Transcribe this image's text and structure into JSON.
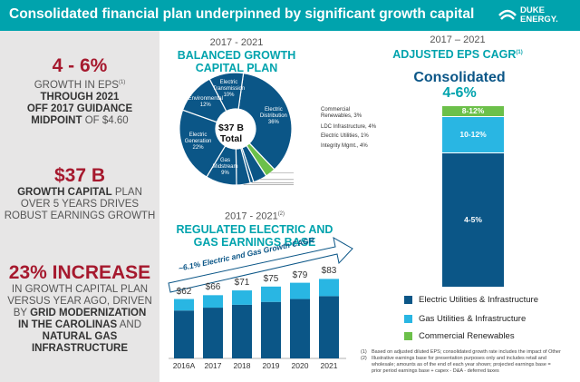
{
  "header": {
    "title": "Consolidated financial plan underpinned by significant growth capital",
    "logo_text_line1": "DUKE",
    "logo_text_line2": "ENERGY."
  },
  "left": {
    "s1_big": "4 - 6%",
    "s1_l1": "GROWTH IN EPS",
    "s1_sup": "(1)",
    "s1_l2": "THROUGH 2021",
    "s1_l3": "OFF 2017 GUIDANCE",
    "s1_l4a": "MIDPOINT",
    "s1_l4b": "OF $4.60",
    "s2_big": "$37 B",
    "s2_l1a": "GROWTH CAPITAL",
    "s2_l1b": "PLAN",
    "s2_l2": "OVER 5 YEARS DRIVES",
    "s2_l3": "ROBUST EARNINGS GROWTH",
    "s3_big": "23% INCREASE",
    "s3_l1": "IN GROWTH CAPITAL PLAN",
    "s3_l2": "VERSUS YEAR AGO, DRIVEN",
    "s3_l3a": "BY",
    "s3_l3b": "GRID MODERNIZATION",
    "s3_l4a": "IN THE CAROLINAS",
    "s3_l4b": "AND",
    "s3_l5": "NATURAL GAS",
    "s3_l6": "INFRASTRUCTURE"
  },
  "pie": {
    "title_l1": "2017 - 2021",
    "title_l2": "BALANCED GROWTH",
    "title_l3": "CAPITAL PLAN",
    "center_l1": "$37 B",
    "center_l2": "Total"
  },
  "bars": {
    "title_l1": "2017 - 2021",
    "title_sup": "(2)",
    "title_l2": "REGULATED ELECTRIC AND",
    "title_l3": "GAS EARNINGS BASE",
    "arrow_text": "~6.1% Electric and Gas Growth CAGR"
  },
  "eps": {
    "title_l1": "2017 – 2021",
    "title_l2": "ADJUSTED EPS CAGR",
    "title_sup": "(1)",
    "big_l1": "Consolidated",
    "big_l2": "4-6%",
    "seg_top": "8-12%",
    "seg_mid": "10-12%",
    "seg_bot": "4-5%",
    "legend": [
      "Electric Utilities & Infrastructure",
      "Gas Utilities & Infrastructure",
      "Commercial Renewables"
    ]
  },
  "footnotes": {
    "n1": "(1)",
    "t1": "Based on adjusted diluted EPS; consolidated growth rate includes the impact of Other",
    "n2": "(2)",
    "t2a": "Illustrative earnings base for presentation purposes only and includes retail and",
    "t2b": "wholesale; amounts as of the end of each year shown; projected earnings base =",
    "t2c": "prior period earnings base + capex - D&A - deferred taxes"
  },
  "colors": {
    "teal": "#00a3ad",
    "navy": "#0b5687",
    "light_blue": "#29b6e3",
    "green": "#6cc04a",
    "red": "#a6192e"
  },
  "chart_data": [
    {
      "type": "pie",
      "title": "BALANCED GROWTH CAPITAL PLAN",
      "slices": [
        {
          "label": "Electric Distribution",
          "value": 36,
          "label_text": "Electric\nDistribution\n36%",
          "color": "#0b5687",
          "outside": false
        },
        {
          "label": "Commercial Renewables",
          "value": 3,
          "label_text": "Commercial\nRenewables, 3%",
          "color": "#6cc04a",
          "outside": true
        },
        {
          "label": "LDC Infrastructure",
          "value": 4,
          "label_text": "LDC Infrastructure, 4%",
          "color": "#0b5687",
          "outside": true
        },
        {
          "label": "Electric Utilities",
          "value": 1,
          "label_text": "Electric Utilities, 1%",
          "color": "#0b5687",
          "outside": true
        },
        {
          "label": "Integrity Mgmt.",
          "value": 4,
          "label_text": "Integrity Mgmt., 4%",
          "color": "#0b5687",
          "outside": true
        },
        {
          "label": "Gas Midstream",
          "value": 9,
          "label_text": "Gas\nMidstream\n9%",
          "color": "#0b5687",
          "outside": false
        },
        {
          "label": "Electric Generation",
          "value": 22,
          "label_text": "Electric\nGeneration\n22%",
          "color": "#0b5687",
          "outside": false
        },
        {
          "label": "Environmental",
          "value": 12,
          "label_text": "Environmental\n12%",
          "color": "#0b5687",
          "outside": false
        },
        {
          "label": "Electric Transmission",
          "value": 10,
          "label_text": "Electric\nTransmission\n10%",
          "color": "#0b5687",
          "outside": false
        }
      ]
    },
    {
      "type": "bar",
      "title": "REGULATED ELECTRIC AND GAS EARNINGS BASE",
      "categories": [
        "2016A",
        "2017",
        "2018",
        "2019",
        "2020",
        "2021"
      ],
      "totals_labels": [
        "$62",
        "$66",
        "$71",
        "$75",
        "$79",
        "$83"
      ],
      "series": [
        {
          "name": "Electric",
          "values": [
            50,
            53,
            56,
            59,
            62,
            65
          ],
          "color": "#0b5687"
        },
        {
          "name": "Gas",
          "values": [
            12,
            13,
            15,
            16,
            17,
            18
          ],
          "color": "#29b6e3"
        }
      ],
      "ylim": [
        0,
        90
      ]
    },
    {
      "type": "bar",
      "title": "ADJUSTED EPS CAGR",
      "categories": [
        "Consolidated"
      ],
      "series": [
        {
          "name": "Electric Utilities & Infrastructure",
          "label": "4-5%",
          "share": 0.74,
          "color": "#0b5687"
        },
        {
          "name": "Gas Utilities & Infrastructure",
          "label": "10-12%",
          "share": 0.2,
          "color": "#29b6e3"
        },
        {
          "name": "Commercial Renewables",
          "label": "8-12%",
          "share": 0.06,
          "color": "#6cc04a"
        }
      ]
    }
  ]
}
